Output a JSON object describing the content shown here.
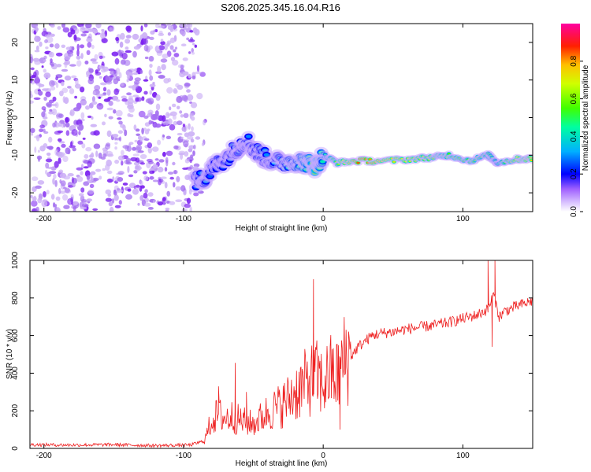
{
  "title": "S206.2025.345.16.04.R16",
  "chart_data": [
    {
      "type": "heatmap",
      "xlabel": "Height of straight line (km)",
      "ylabel": "Frequency (Hz)",
      "xlim": [
        -210,
        150
      ],
      "ylim": [
        -25,
        25
      ],
      "xticks": [
        -200,
        -100,
        0,
        100
      ],
      "yticks": [
        -20,
        -10,
        0,
        10,
        20
      ],
      "colorbar": {
        "label": "Normalized spectral amplitude",
        "range": [
          0,
          1
        ],
        "ticks": [
          "0.0",
          "0.2",
          "0.4",
          "0.6",
          "0.8"
        ],
        "tick_values": [
          0,
          0.2,
          0.4,
          0.6,
          0.8
        ],
        "colors": [
          "#ffffff",
          "#c8a0ff",
          "#7000e0",
          "#0000ff",
          "#00c0ff",
          "#00ff40",
          "#c0ff00",
          "#ffd000",
          "#ff2000",
          "#ff00a0"
        ]
      },
      "noise_region": {
        "x_range": [
          -210,
          -90
        ],
        "freq_range": [
          -25,
          25
        ],
        "amplitude_range": [
          0.05,
          0.15
        ]
      },
      "signal_track": [
        {
          "x": -92,
          "freq": -17,
          "amp": 0.25
        },
        {
          "x": -85,
          "freq": -16,
          "amp": 0.3
        },
        {
          "x": -78,
          "freq": -13,
          "amp": 0.22
        },
        {
          "x": -70,
          "freq": -11,
          "amp": 0.25
        },
        {
          "x": -62,
          "freq": -8,
          "amp": 0.28
        },
        {
          "x": -55,
          "freq": -6,
          "amp": 0.3
        },
        {
          "x": -48,
          "freq": -9,
          "amp": 0.25
        },
        {
          "x": -40,
          "freq": -11,
          "amp": 0.3
        },
        {
          "x": -30,
          "freq": -12,
          "amp": 0.35
        },
        {
          "x": -20,
          "freq": -11.5,
          "amp": 0.4
        },
        {
          "x": -12,
          "freq": -12,
          "amp": 0.45
        },
        {
          "x": -5,
          "freq": -13,
          "amp": 0.55
        },
        {
          "x": 0,
          "freq": -10,
          "amp": 0.4
        },
        {
          "x": 10,
          "freq": -12,
          "amp": 0.6
        },
        {
          "x": 25,
          "freq": -11.5,
          "amp": 0.85
        },
        {
          "x": 45,
          "freq": -11.5,
          "amp": 0.75
        },
        {
          "x": 65,
          "freq": -11,
          "amp": 0.65
        },
        {
          "x": 80,
          "freq": -10.5,
          "amp": 0.6
        },
        {
          "x": 90,
          "freq": -10,
          "amp": 0.55
        },
        {
          "x": 105,
          "freq": -11.5,
          "amp": 0.55
        },
        {
          "x": 118,
          "freq": -10,
          "amp": 0.5
        },
        {
          "x": 125,
          "freq": -12,
          "amp": 0.45
        },
        {
          "x": 140,
          "freq": -11,
          "amp": 0.7
        },
        {
          "x": 150,
          "freq": -11,
          "amp": 0.75
        }
      ]
    },
    {
      "type": "line",
      "xlabel": "Height of straight line (km)",
      "ylabel": "SNR (10 * v/v)",
      "xlim": [
        -210,
        150
      ],
      "ylim": [
        0,
        1000
      ],
      "xticks": [
        -200,
        -100,
        0,
        100
      ],
      "yticks": [
        0,
        200,
        400,
        600,
        800,
        1000
      ],
      "series": [
        {
          "name": "SNR",
          "color": "#ee2020",
          "x": [
            -210,
            -180,
            -150,
            -120,
            -95,
            -85,
            -80,
            -75,
            -70,
            -65,
            -60,
            -55,
            -50,
            -45,
            -40,
            -35,
            -30,
            -25,
            -20,
            -15,
            -10,
            -5,
            0,
            5,
            10,
            15,
            20,
            25,
            30,
            35,
            40,
            45,
            50,
            60,
            70,
            80,
            90,
            100,
            110,
            118,
            122,
            126,
            130,
            140,
            150
          ],
          "y": [
            20,
            18,
            20,
            15,
            18,
            40,
            150,
            180,
            160,
            170,
            150,
            140,
            130,
            160,
            190,
            210,
            230,
            260,
            300,
            330,
            360,
            380,
            340,
            400,
            380,
            470,
            490,
            540,
            570,
            600,
            610,
            615,
            620,
            635,
            645,
            655,
            670,
            690,
            710,
            740,
            820,
            700,
            730,
            760,
            785
          ]
        }
      ],
      "spikes": [
        {
          "x": -75,
          "y": 330
        },
        {
          "x": -63,
          "y": 455
        },
        {
          "x": -55,
          "y": 300
        },
        {
          "x": -7,
          "y": 900
        },
        {
          "x": 12,
          "y": 100
        },
        {
          "x": 118,
          "y": 1000
        },
        {
          "x": 121,
          "y": 540
        },
        {
          "x": 123,
          "y": 1000
        }
      ]
    }
  ]
}
